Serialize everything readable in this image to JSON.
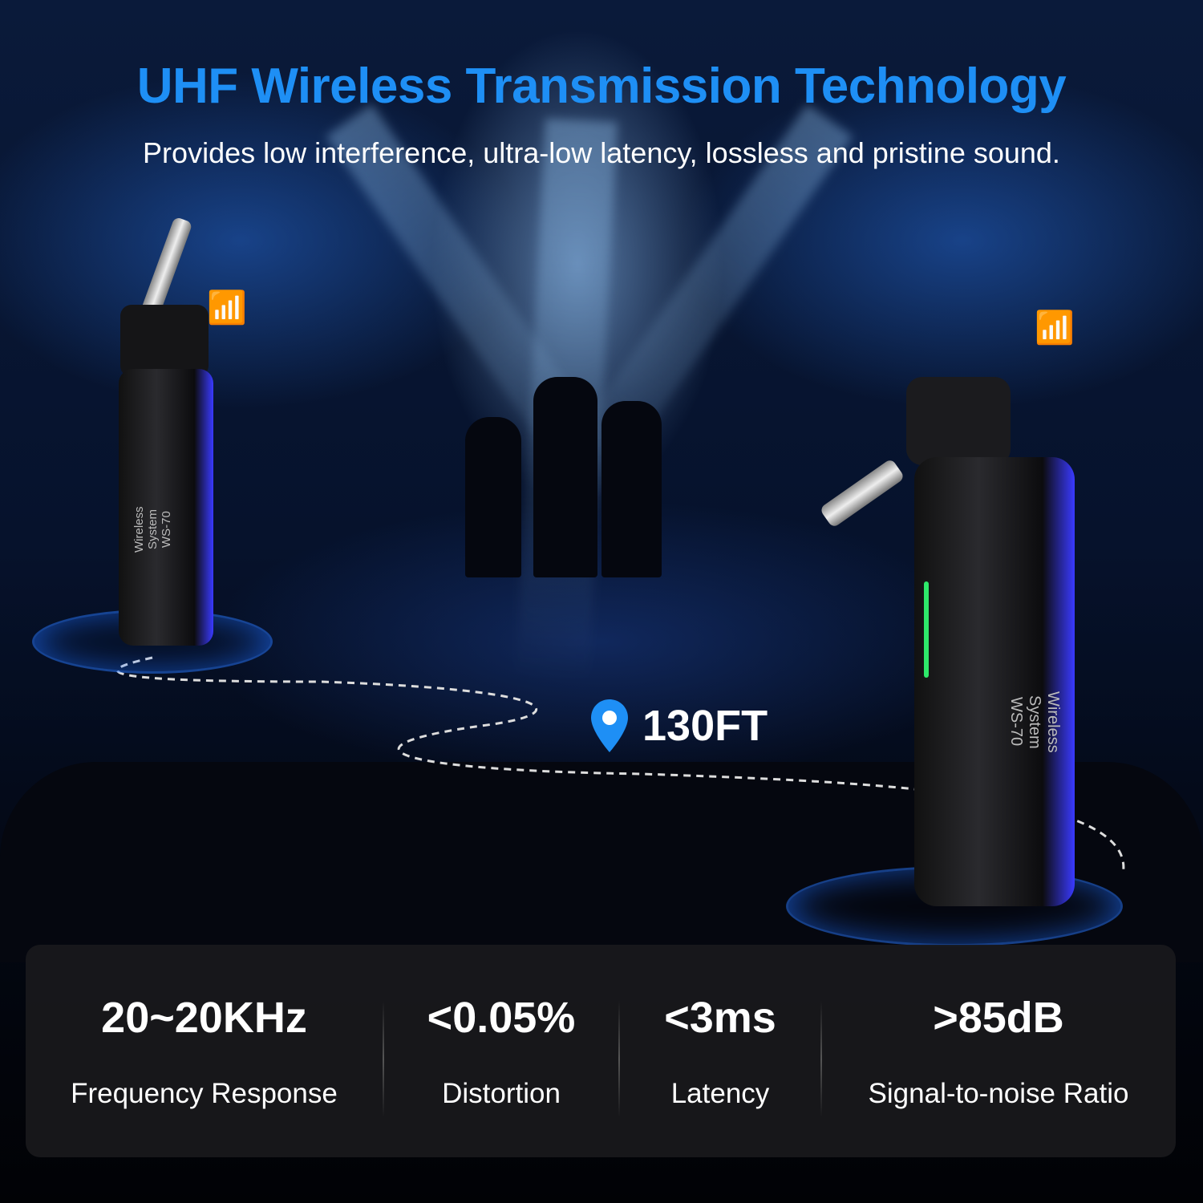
{
  "header": {
    "title": "UHF Wireless Transmission Technology",
    "subtitle": "Provides low interference, ultra-low latency, lossless and pristine sound."
  },
  "devices": [
    {
      "label": "Wireless System",
      "model": "WS-70"
    },
    {
      "label": "Wireless System",
      "model": "WS-70"
    }
  ],
  "range": {
    "icon": "location-pin-icon",
    "value": "130FT"
  },
  "specs": [
    {
      "value": "20~20KHz",
      "label": "Frequency Response"
    },
    {
      "value": "<0.05%",
      "label": "Distortion"
    },
    {
      "value": "<3ms",
      "label": "Latency"
    },
    {
      "value": ">85dB",
      "label": "Signal-to-noise Ratio"
    }
  ],
  "colors": {
    "title": "#1e8ff5",
    "accent": "#1e8ff5",
    "panel": "#19191c"
  }
}
